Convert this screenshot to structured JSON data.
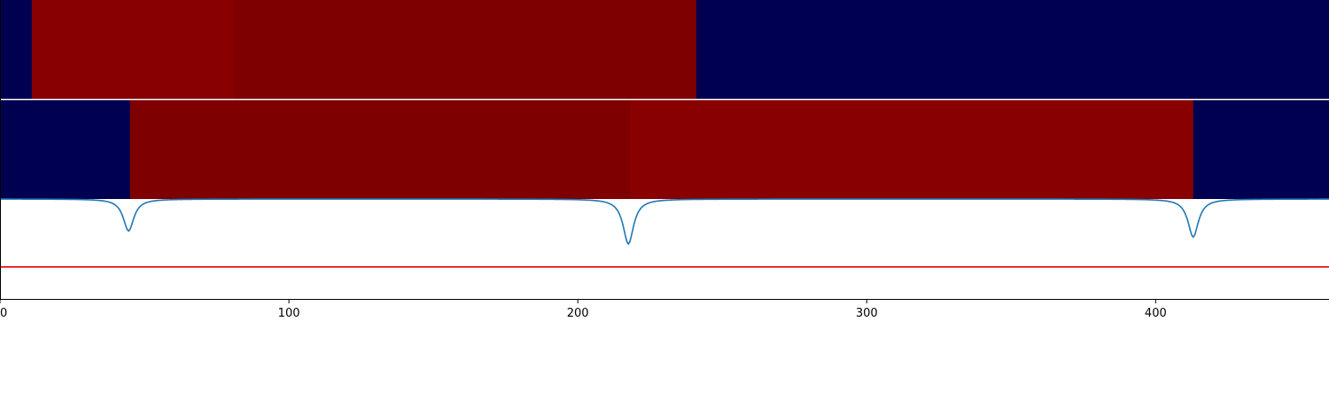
{
  "chart_data": {
    "type": "heatmap",
    "x_axis": {
      "range": [
        0,
        460
      ],
      "ticks": [
        0,
        100,
        200,
        300,
        400
      ],
      "tick_labels": [
        "0",
        "100",
        "200",
        "300",
        "400"
      ]
    },
    "band_rows": [
      {
        "segments": [
          {
            "start": 0,
            "end": 11,
            "color": "#000050"
          },
          {
            "start": 11,
            "end": 81,
            "color": "#880000"
          },
          {
            "start": 81,
            "end": 241,
            "color": "#7e0000"
          },
          {
            "start": 241,
            "end": 460,
            "color": "#000050"
          }
        ]
      },
      {
        "segments": [
          {
            "start": 0,
            "end": 45,
            "color": "#000050"
          },
          {
            "start": 45,
            "end": 218,
            "color": "#7e0000"
          },
          {
            "start": 218,
            "end": 413,
            "color": "#880000"
          },
          {
            "start": 413,
            "end": 460,
            "color": "#000050"
          }
        ]
      }
    ],
    "line_panel": {
      "ylim": [
        0,
        1
      ],
      "baseline": 1.0,
      "threshold": 0.32,
      "threshold_color": "#e00000",
      "line_color": "#1f77b4",
      "dips": [
        {
          "center": 44.5,
          "depth": 0.32
        },
        {
          "center": 217.5,
          "depth": 0.45
        },
        {
          "center": 413,
          "depth": 0.38
        }
      ]
    }
  }
}
